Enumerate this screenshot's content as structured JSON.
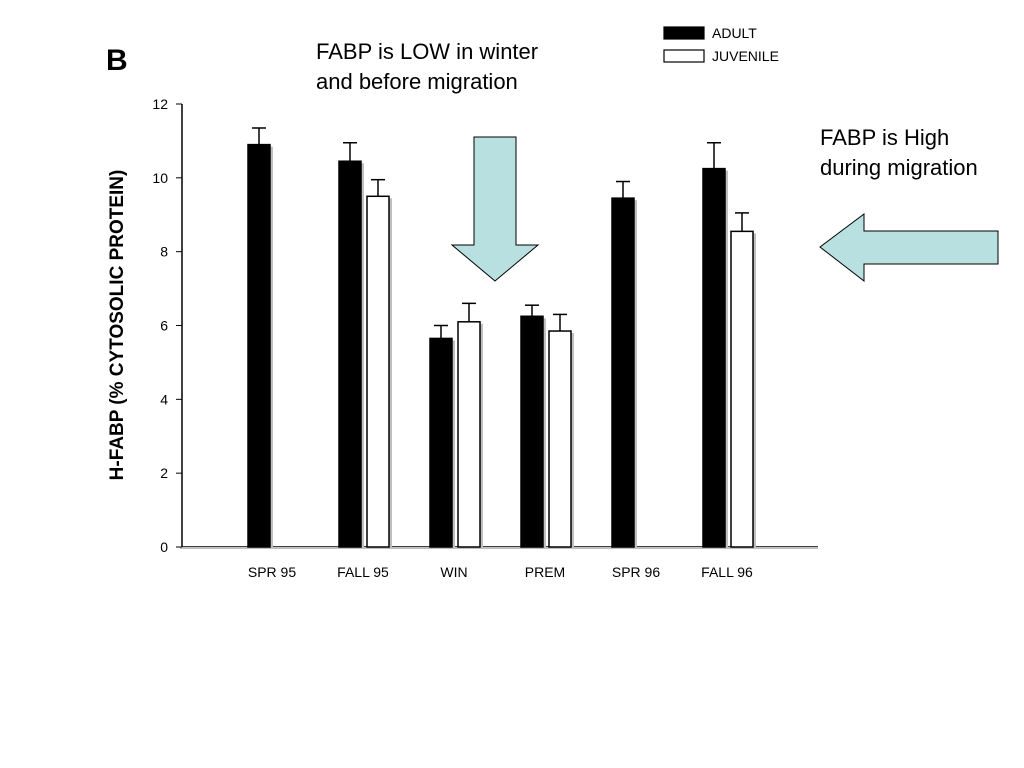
{
  "panel_label": "B",
  "annotations": {
    "low_line1": "FABP is LOW in winter",
    "low_line2": "and before migration",
    "high_line1": "FABP is High",
    "high_line2": "during migration"
  },
  "colors": {
    "adult": "#000000",
    "juvenile": "#ffffff",
    "arrow_fill": "#b9e0e0",
    "shadow": "#bfbfbf"
  },
  "chart_data": {
    "type": "bar",
    "title": "",
    "xlabel": "",
    "ylabel": "H-FABP (% CYTOSOLIC PROTEIN)",
    "ylim": [
      0,
      12
    ],
    "yticks": [
      0,
      2,
      4,
      6,
      8,
      10,
      12
    ],
    "categories": [
      "SPR 95",
      "FALL 95",
      "WIN",
      "PREM",
      "SPR 96",
      "FALL 96"
    ],
    "series": [
      {
        "name": "ADULT",
        "values": [
          10.9,
          10.45,
          5.65,
          6.25,
          9.45,
          10.25
        ],
        "errors": [
          0.45,
          0.5,
          0.35,
          0.3,
          0.45,
          0.7
        ]
      },
      {
        "name": "JUVENILE",
        "values": [
          null,
          9.5,
          6.1,
          5.85,
          null,
          8.55
        ],
        "errors": [
          null,
          0.45,
          0.5,
          0.45,
          null,
          0.5
        ]
      }
    ],
    "legend_position": "top-right",
    "grid": false
  }
}
